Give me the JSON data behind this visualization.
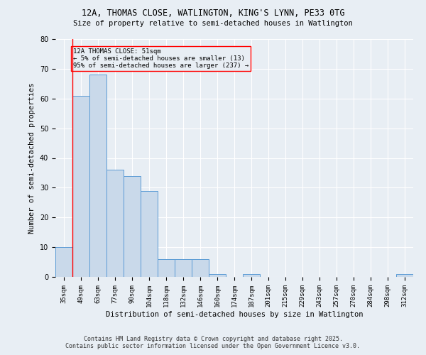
{
  "title1": "12A, THOMAS CLOSE, WATLINGTON, KING'S LYNN, PE33 0TG",
  "title2": "Size of property relative to semi-detached houses in Watlington",
  "xlabel": "Distribution of semi-detached houses by size in Watlington",
  "ylabel": "Number of semi-detached properties",
  "categories": [
    "35sqm",
    "49sqm",
    "63sqm",
    "77sqm",
    "90sqm",
    "104sqm",
    "118sqm",
    "132sqm",
    "146sqm",
    "160sqm",
    "174sqm",
    "187sqm",
    "201sqm",
    "215sqm",
    "229sqm",
    "243sqm",
    "257sqm",
    "270sqm",
    "284sqm",
    "298sqm",
    "312sqm"
  ],
  "values": [
    10,
    61,
    68,
    36,
    34,
    29,
    6,
    6,
    6,
    1,
    0,
    1,
    0,
    0,
    0,
    0,
    0,
    0,
    0,
    0,
    1
  ],
  "bar_color": "#c9d9ea",
  "bar_edge_color": "#5b9bd5",
  "annotation_title": "12A THOMAS CLOSE: 51sqm",
  "annotation_line1": "← 5% of semi-detached houses are smaller (13)",
  "annotation_line2": "95% of semi-detached houses are larger (237) →",
  "ylim": [
    0,
    80
  ],
  "yticks": [
    0,
    10,
    20,
    30,
    40,
    50,
    60,
    70,
    80
  ],
  "footer1": "Contains HM Land Registry data © Crown copyright and database right 2025.",
  "footer2": "Contains public sector information licensed under the Open Government Licence v3.0.",
  "bg_color": "#e8eef4"
}
